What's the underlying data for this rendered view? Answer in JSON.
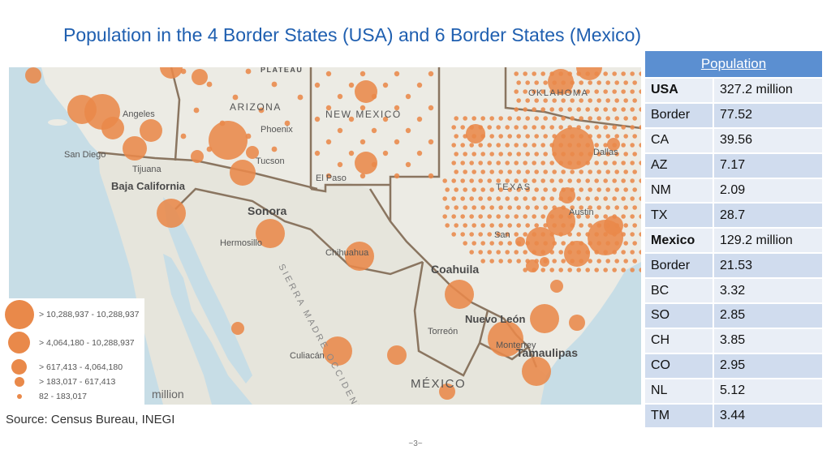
{
  "title": "Population in the 4 Border States (USA) and 6 Border States (Mexico)",
  "map": {
    "place_labels": [
      {
        "name": "PLATEAU",
        "kind": "region"
      },
      {
        "name": "Angeles",
        "kind": "city"
      },
      {
        "name": "San Diego",
        "kind": "city"
      },
      {
        "name": "Tijuana",
        "kind": "city"
      },
      {
        "name": "Baja California",
        "kind": "state"
      },
      {
        "name": "ARIZONA",
        "kind": "state-us"
      },
      {
        "name": "Phoenix",
        "kind": "city"
      },
      {
        "name": "Tucson",
        "kind": "city"
      },
      {
        "name": "NEW MEXICO",
        "kind": "state-us"
      },
      {
        "name": "El Paso",
        "kind": "city"
      },
      {
        "name": "TEXAS",
        "kind": "state-us"
      },
      {
        "name": "OKLAHOMA",
        "kind": "state-us"
      },
      {
        "name": "Dallas",
        "kind": "city"
      },
      {
        "name": "Austin",
        "kind": "city"
      },
      {
        "name": "San",
        "kind": "city"
      },
      {
        "name": "Sonora",
        "kind": "state"
      },
      {
        "name": "Hermosillo",
        "kind": "city"
      },
      {
        "name": "Chihuahua",
        "kind": "city"
      },
      {
        "name": "Coahuila",
        "kind": "state"
      },
      {
        "name": "Nuevo León",
        "kind": "state"
      },
      {
        "name": "Torreón",
        "kind": "city"
      },
      {
        "name": "Monterrey",
        "kind": "city"
      },
      {
        "name": "Tamaulipas",
        "kind": "state"
      },
      {
        "name": "Culiacán",
        "kind": "city"
      },
      {
        "name": "MÉXICO",
        "kind": "country"
      },
      {
        "name": "SIERRA MADRE OCCIDENTAL",
        "kind": "range"
      }
    ],
    "legend": [
      {
        "label": "> 10,288,937 - 10,288,937"
      },
      {
        "label": "> 4,064,180 - 10,288,937"
      },
      {
        "label": "> 617,413 - 4,064,180"
      },
      {
        "label": "> 183,017 - 617,413"
      },
      {
        "label": "82 - 183,017"
      }
    ],
    "unit_label": "million",
    "colors": {
      "bubble": "#e9894a",
      "land": "#ecebe4",
      "water": "#c7dde6",
      "border": "#8a7560"
    }
  },
  "table": {
    "header": "Population",
    "rows": [
      {
        "name": "USA",
        "value": "327.2 million",
        "bold": true
      },
      {
        "name": "Border",
        "value": "77.52",
        "bold": false
      },
      {
        "name": "CA",
        "value": "39.56",
        "bold": false
      },
      {
        "name": "AZ",
        "value": "7.17",
        "bold": false
      },
      {
        "name": "NM",
        "value": "2.09",
        "bold": false
      },
      {
        "name": "TX",
        "value": "28.7",
        "bold": false
      },
      {
        "name": "Mexico",
        "value": "129.2 million",
        "bold": true
      },
      {
        "name": "Border",
        "value": "21.53",
        "bold": false
      },
      {
        "name": "BC",
        "value": "3.32",
        "bold": false
      },
      {
        "name": "SO",
        "value": "2.85",
        "bold": false
      },
      {
        "name": "CH",
        "value": "3.85",
        "bold": false
      },
      {
        "name": "CO",
        "value": "2.95",
        "bold": false
      },
      {
        "name": "NL",
        "value": "5.12",
        "bold": false
      },
      {
        "name": "TM",
        "value": "3.44",
        "bold": false
      }
    ]
  },
  "source": "Source: Census Bureau, INEGI",
  "page_number": "~3~"
}
